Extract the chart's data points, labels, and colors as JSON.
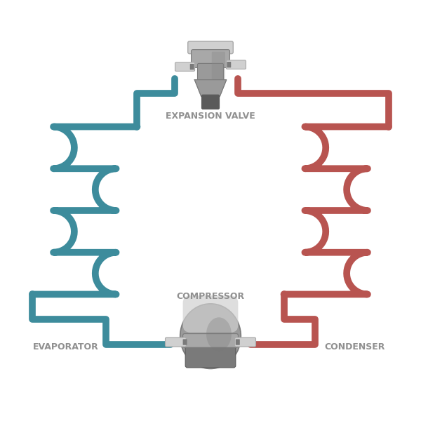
{
  "bg_color": "#ffffff",
  "teal_color": "#3d8c9c",
  "red_color": "#b85450",
  "gray_light": "#d0d0d0",
  "gray_mid": "#a8a8a8",
  "gray_dark": "#7a7a7a",
  "gray_darker": "#5a5a5a",
  "gray_body": "#9a9a9a",
  "text_color": "#909090",
  "label_expansion": "EXPANSION VALVE",
  "label_compressor": "COMPRESSOR",
  "label_evaporator": "EVAPORATOR",
  "label_condenser": "CONDENSER",
  "line_width": 7.0,
  "figsize": [
    6.0,
    6.0
  ],
  "dpi": 100
}
